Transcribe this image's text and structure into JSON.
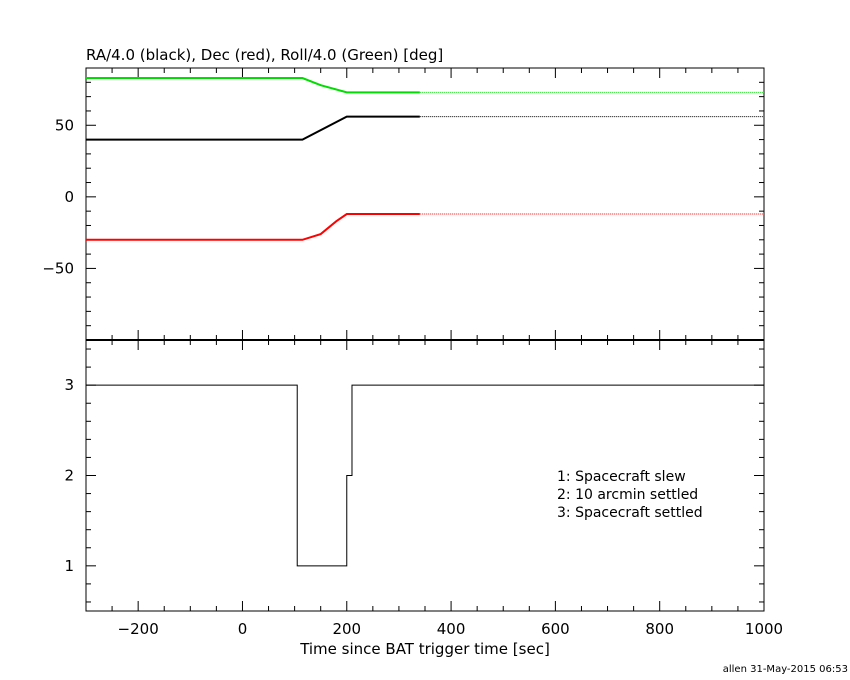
{
  "chart_data": [
    {
      "type": "line",
      "title": "RA/4.0 (black), Dec (red), Roll/4.0 (Green) [deg]",
      "xlim": [
        -300,
        1000
      ],
      "ylim": [
        -100,
        90
      ],
      "y_ticks": [
        50,
        0,
        -50
      ],
      "y_tick_labels": [
        "50",
        "0",
        "−50"
      ],
      "series": [
        {
          "color": "#000000",
          "solid": {
            "x": [
              -300,
              115,
              200,
              340
            ],
            "y": [
              40,
              40,
              56,
              56
            ]
          },
          "dotted": {
            "x": [
              340,
              1000
            ],
            "y": [
              56,
              56
            ]
          }
        },
        {
          "color": "#ff0000",
          "solid": {
            "x": [
              -300,
              115,
              150,
              180,
              200,
              340
            ],
            "y": [
              -30,
              -30,
              -26,
              -17,
              -12,
              -12
            ]
          },
          "dotted": {
            "x": [
              340,
              1000
            ],
            "y": [
              -12,
              -12
            ]
          }
        },
        {
          "color": "#00dd00",
          "solid": {
            "x": [
              -300,
              115,
              150,
              200,
              340
            ],
            "y": [
              83,
              83,
              78,
              73,
              73
            ]
          },
          "dotted": {
            "x": [
              340,
              1000
            ],
            "y": [
              73,
              73
            ]
          }
        }
      ]
    },
    {
      "type": "line",
      "xlabel": "Time since BAT trigger time [sec]",
      "xlim": [
        -300,
        1000
      ],
      "ylim": [
        0.5,
        3.5
      ],
      "x_ticks": [
        -200,
        0,
        200,
        400,
        600,
        800,
        1000
      ],
      "x_tick_labels": [
        "−200",
        "0",
        "200",
        "400",
        "600",
        "800",
        "1000"
      ],
      "y_ticks": [
        3,
        2,
        1
      ],
      "y_tick_labels": [
        "3",
        "2",
        "1"
      ],
      "series": [
        {
          "color": "#000000",
          "x": [
            -300,
            105,
            105,
            200,
            200,
            210,
            210,
            1000
          ],
          "y": [
            3,
            3,
            1,
            1,
            2,
            2,
            3,
            3
          ]
        }
      ],
      "annotations": [
        "1: Spacecraft slew",
        "2: 10 arcmin settled",
        "3: Spacecraft settled"
      ]
    }
  ],
  "footer": {
    "stamp": "allen 31-May-2015 06:53"
  }
}
